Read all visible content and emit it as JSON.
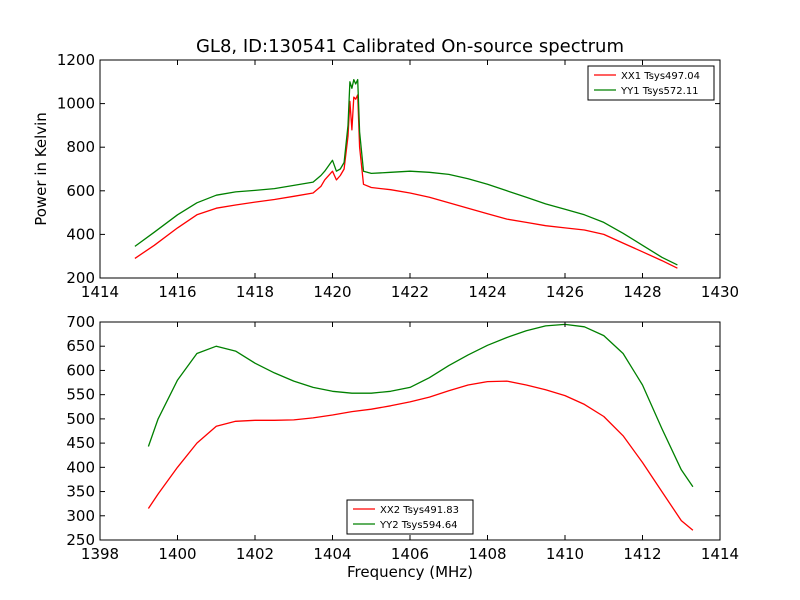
{
  "chart_data": [
    {
      "type": "line",
      "title": "GL8, ID:130541 Calibrated On-source spectrum",
      "xlabel": "",
      "ylabel": "Power in Kelvin",
      "xlim": [
        1414,
        1430
      ],
      "ylim": [
        200,
        1200
      ],
      "xticks": [
        1414,
        1416,
        1418,
        1420,
        1422,
        1424,
        1426,
        1428,
        1430
      ],
      "yticks": [
        200,
        400,
        600,
        800,
        1000,
        1200
      ],
      "grid": false,
      "legend_position": "top-right",
      "series": [
        {
          "name": "XX1 Tsys497.04",
          "color": "#ff0000",
          "x": [
            1414.9,
            1415.4,
            1416.0,
            1416.5,
            1417.0,
            1417.5,
            1418.0,
            1418.5,
            1419.0,
            1419.5,
            1419.7,
            1419.8,
            1420.0,
            1420.1,
            1420.2,
            1420.3,
            1420.4,
            1420.45,
            1420.5,
            1420.55,
            1420.6,
            1420.65,
            1420.7,
            1420.8,
            1421.0,
            1421.5,
            1422.0,
            1422.5,
            1423.0,
            1423.5,
            1424.0,
            1424.5,
            1425.0,
            1425.5,
            1426.0,
            1426.5,
            1427.0,
            1427.5,
            1428.0,
            1428.5,
            1428.9
          ],
          "y": [
            290,
            350,
            430,
            490,
            520,
            535,
            548,
            560,
            575,
            590,
            620,
            650,
            690,
            650,
            670,
            700,
            850,
            1010,
            880,
            1030,
            1020,
            1040,
            800,
            630,
            615,
            605,
            590,
            570,
            545,
            520,
            495,
            470,
            455,
            440,
            430,
            420,
            400,
            360,
            320,
            280,
            245
          ]
        },
        {
          "name": "YY1 Tsys572.11",
          "color": "#008000",
          "x": [
            1414.9,
            1415.4,
            1416.0,
            1416.5,
            1417.0,
            1417.5,
            1418.0,
            1418.5,
            1419.0,
            1419.5,
            1419.7,
            1419.8,
            1420.0,
            1420.1,
            1420.2,
            1420.3,
            1420.4,
            1420.45,
            1420.5,
            1420.55,
            1420.6,
            1420.65,
            1420.7,
            1420.8,
            1421.0,
            1421.5,
            1422.0,
            1422.5,
            1423.0,
            1423.5,
            1424.0,
            1424.5,
            1425.0,
            1425.5,
            1426.0,
            1426.5,
            1427.0,
            1427.5,
            1428.0,
            1428.5,
            1428.9
          ],
          "y": [
            345,
            410,
            490,
            545,
            580,
            595,
            602,
            610,
            625,
            640,
            670,
            690,
            740,
            690,
            700,
            730,
            900,
            1100,
            1070,
            1110,
            1090,
            1110,
            870,
            690,
            680,
            685,
            690,
            685,
            675,
            655,
            630,
            600,
            570,
            540,
            515,
            490,
            455,
            405,
            350,
            295,
            260
          ]
        }
      ]
    },
    {
      "type": "line",
      "title": "",
      "xlabel": "Frequency (MHz)",
      "ylabel": "",
      "xlim": [
        1398,
        1414
      ],
      "ylim": [
        250,
        700
      ],
      "xticks": [
        1398,
        1400,
        1402,
        1404,
        1406,
        1408,
        1410,
        1412,
        1414
      ],
      "yticks": [
        250,
        300,
        350,
        400,
        450,
        500,
        550,
        600,
        650,
        700
      ],
      "grid": false,
      "legend_position": "bottom-center",
      "series": [
        {
          "name": "XX2 Tsys491.83",
          "color": "#ff0000",
          "x": [
            1399.25,
            1399.5,
            1400.0,
            1400.5,
            1401.0,
            1401.5,
            1402.0,
            1402.5,
            1403.0,
            1403.5,
            1404.0,
            1404.5,
            1405.0,
            1405.5,
            1406.0,
            1406.5,
            1407.0,
            1407.5,
            1408.0,
            1408.5,
            1409.0,
            1409.5,
            1410.0,
            1410.5,
            1411.0,
            1411.5,
            1412.0,
            1412.5,
            1413.0,
            1413.3
          ],
          "y": [
            315,
            345,
            400,
            450,
            485,
            495,
            497,
            497,
            498,
            502,
            508,
            515,
            520,
            527,
            535,
            545,
            558,
            570,
            577,
            578,
            570,
            560,
            548,
            530,
            505,
            465,
            410,
            350,
            290,
            270
          ]
        },
        {
          "name": "YY2 Tsys594.64",
          "color": "#008000",
          "x": [
            1399.25,
            1399.5,
            1400.0,
            1400.5,
            1401.0,
            1401.5,
            1402.0,
            1402.5,
            1403.0,
            1403.5,
            1404.0,
            1404.5,
            1405.0,
            1405.5,
            1406.0,
            1406.5,
            1407.0,
            1407.5,
            1408.0,
            1408.5,
            1409.0,
            1409.5,
            1410.0,
            1410.5,
            1411.0,
            1411.5,
            1412.0,
            1412.5,
            1413.0,
            1413.3
          ],
          "y": [
            443,
            500,
            580,
            635,
            650,
            640,
            615,
            595,
            578,
            565,
            557,
            553,
            553,
            557,
            565,
            585,
            610,
            632,
            652,
            668,
            682,
            692,
            695,
            690,
            672,
            635,
            570,
            480,
            395,
            360
          ]
        }
      ]
    }
  ]
}
